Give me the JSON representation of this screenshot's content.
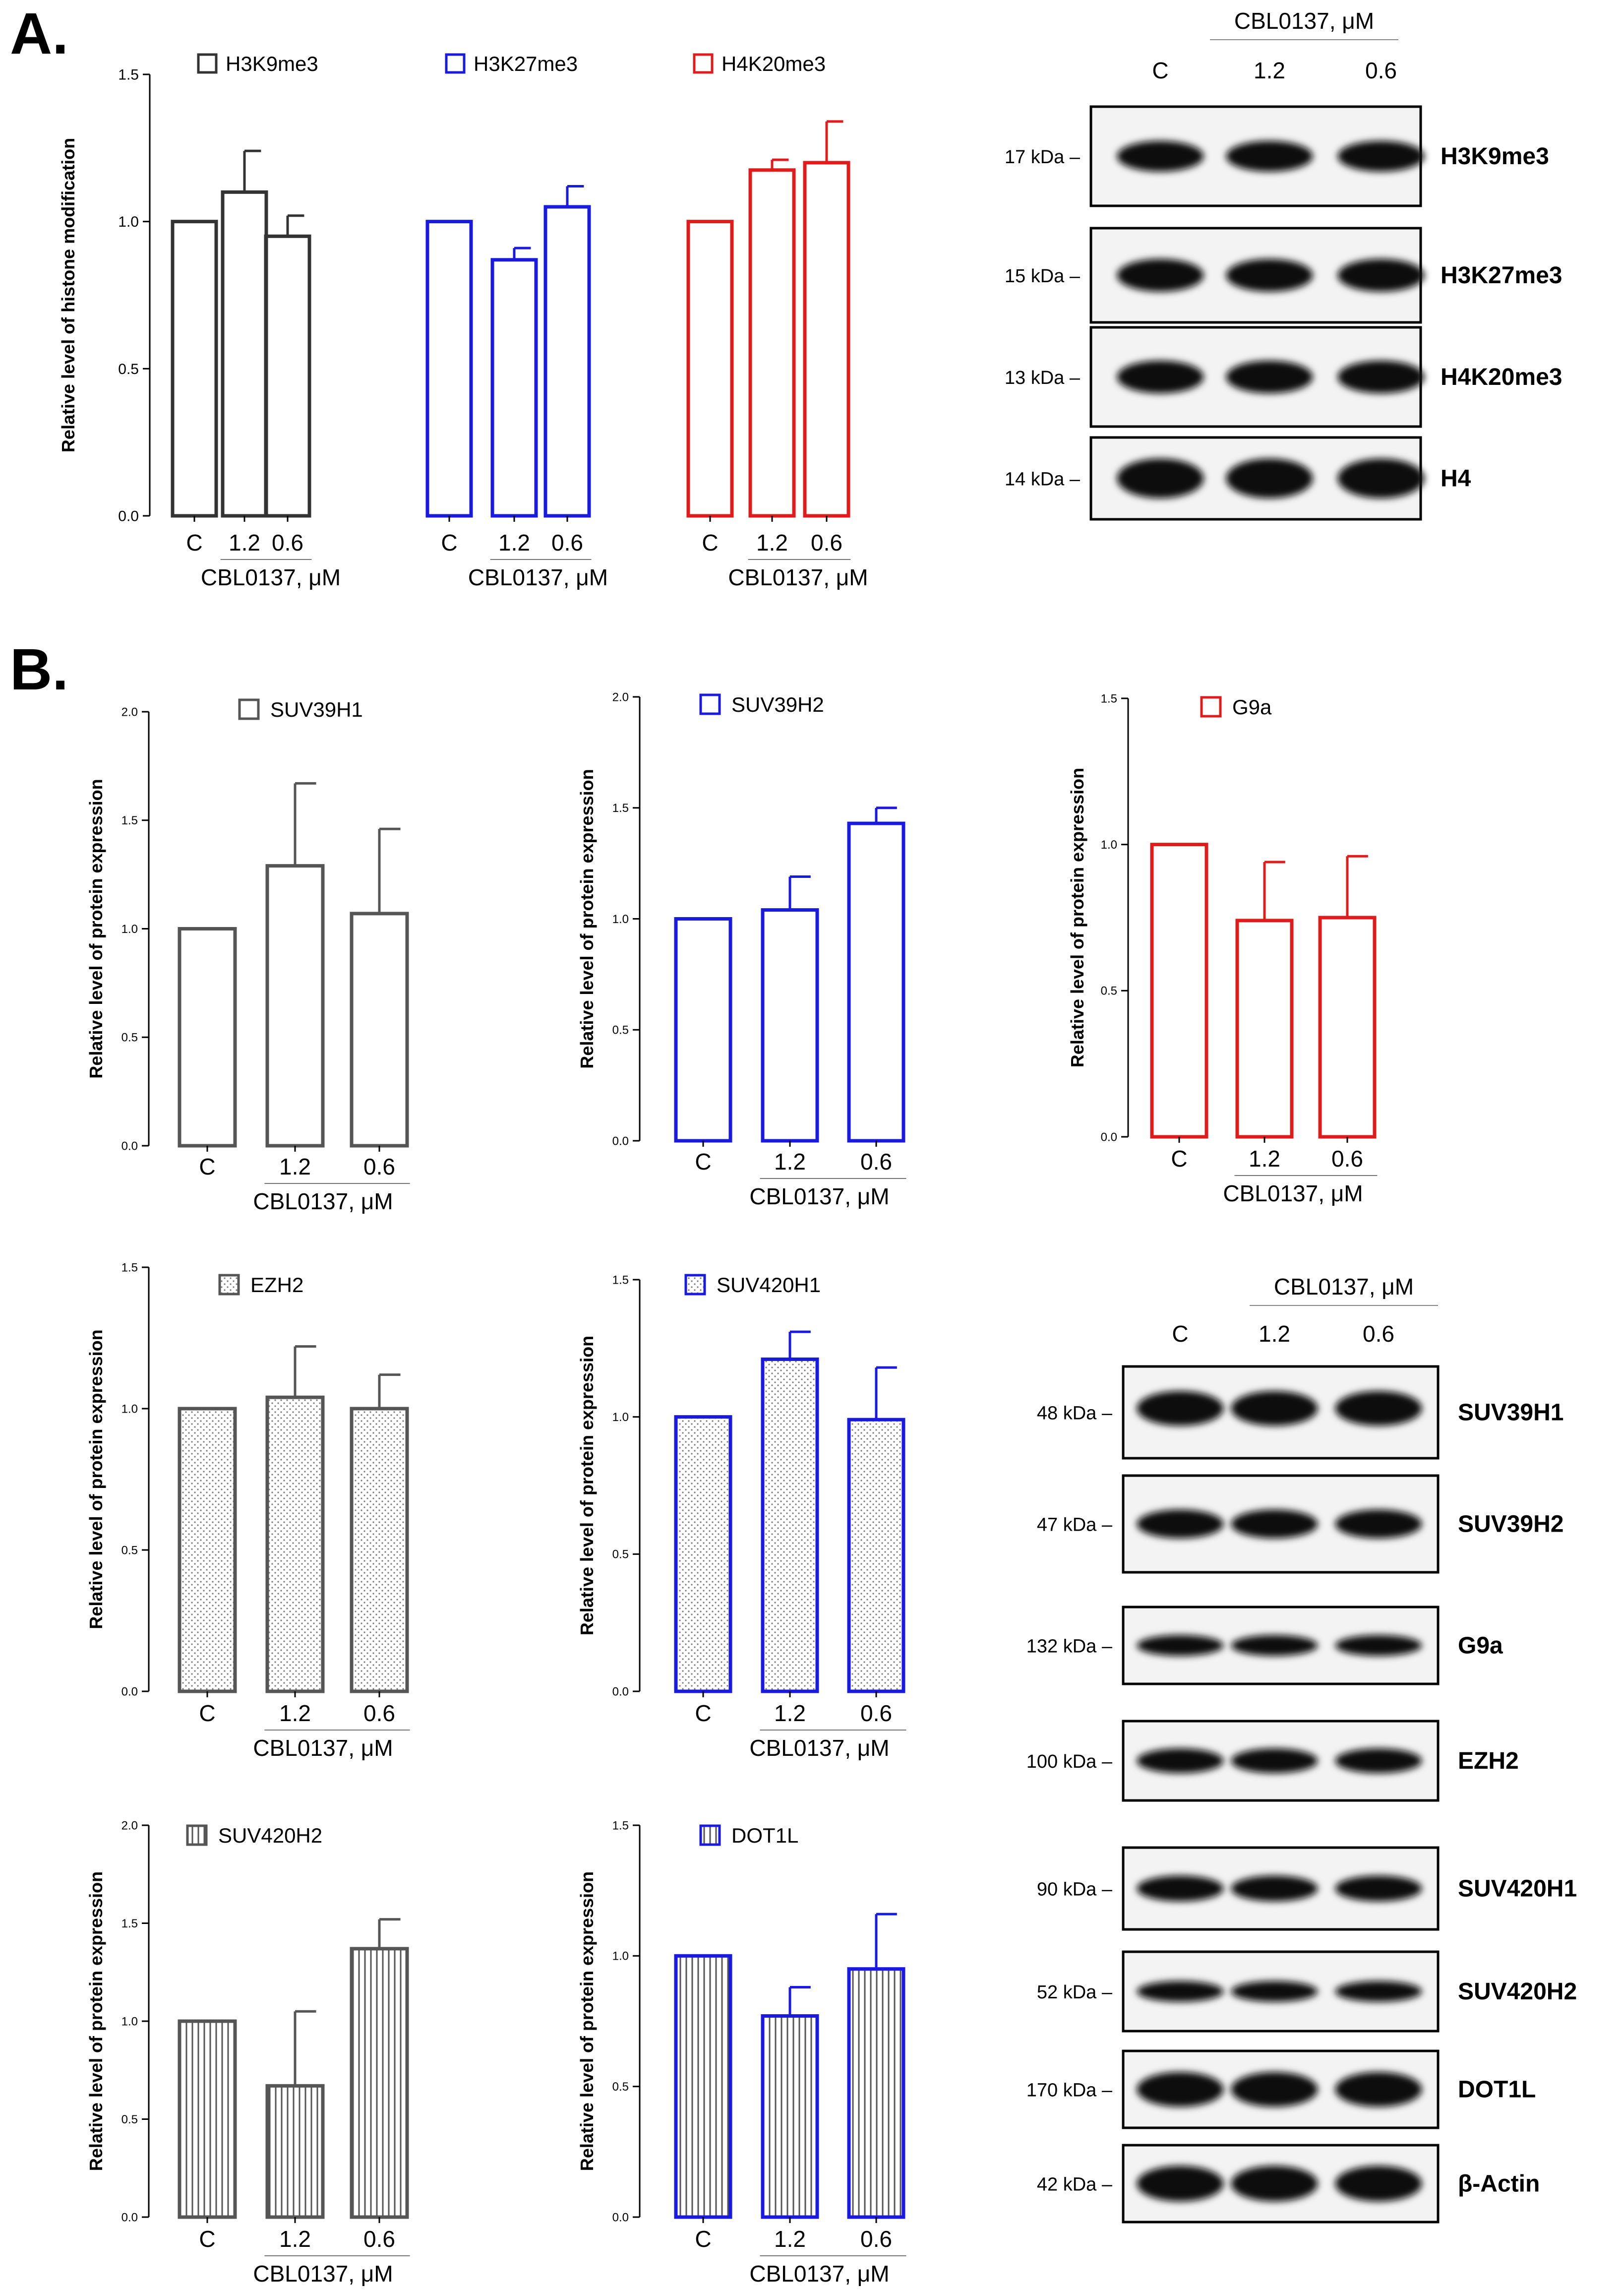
{
  "panels": {
    "a": "A.",
    "b": "B."
  },
  "chart_data": [
    {
      "id": "A-chart",
      "type": "bar",
      "ylabel": "Relative level of histone modification",
      "ylim": [
        0,
        1.5
      ],
      "yticks": [
        "0.0",
        "0.5",
        "1.0",
        "1.5"
      ],
      "categories": [
        "C",
        "1.2",
        "0.6"
      ],
      "group_label": "CBL0137, μM",
      "series": [
        {
          "name": "H3K9me3",
          "color": "#333333",
          "values": [
            1.0,
            1.1,
            0.95
          ],
          "errors": [
            0,
            0.14,
            0.07
          ]
        },
        {
          "name": "H3K27me3",
          "color": "#1a1adf",
          "values": [
            1.0,
            0.87,
            1.05
          ],
          "errors": [
            0,
            0.04,
            0.07
          ]
        },
        {
          "name": "H4K20me3",
          "color": "#e01b1b",
          "values": [
            1.0,
            1.175,
            1.2
          ],
          "errors": [
            0,
            0.035,
            0.14
          ]
        }
      ]
    },
    {
      "id": "SUV39H1",
      "type": "bar",
      "title": "SUV39H1",
      "color": "#555555",
      "pattern": "none",
      "ylabel": "Relative level of protein expression",
      "ylim": [
        0,
        2.0
      ],
      "yticks": [
        "0.0",
        "0.5",
        "1.0",
        "1.5",
        "2.0"
      ],
      "categories": [
        "C",
        "1.2",
        "0.6"
      ],
      "group_label": "CBL0137, μM",
      "values": [
        1.0,
        1.29,
        1.07
      ],
      "errors": [
        0,
        0.38,
        0.39
      ]
    },
    {
      "id": "SUV39H2",
      "type": "bar",
      "title": "SUV39H2",
      "color": "#1a1adf",
      "pattern": "none",
      "ylabel": "Relative level of protein expression",
      "ylim": [
        0,
        2.0
      ],
      "yticks": [
        "0.0",
        "0.5",
        "1.0",
        "1.5",
        "2.0"
      ],
      "categories": [
        "C",
        "1.2",
        "0.6"
      ],
      "group_label": "CBL0137, μM",
      "values": [
        1.0,
        1.04,
        1.43
      ],
      "errors": [
        0,
        0.15,
        0.07
      ]
    },
    {
      "id": "G9a",
      "type": "bar",
      "title": "G9a",
      "color": "#e01b1b",
      "pattern": "none",
      "ylabel": "Relative level of protein expression",
      "ylim": [
        0,
        1.5
      ],
      "yticks": [
        "0.0",
        "0.5",
        "1.0",
        "1.5"
      ],
      "categories": [
        "C",
        "1.2",
        "0.6"
      ],
      "group_label": "CBL0137, μM",
      "values": [
        1.0,
        0.74,
        0.75
      ],
      "errors": [
        0,
        0.2,
        0.21
      ]
    },
    {
      "id": "EZH2",
      "type": "bar",
      "title": "EZH2",
      "color": "#555555",
      "pattern": "dots",
      "ylabel": "Relative level of protein expression",
      "ylim": [
        0,
        1.5
      ],
      "yticks": [
        "0.0",
        "0.5",
        "1.0",
        "1.5"
      ],
      "categories": [
        "C",
        "1.2",
        "0.6"
      ],
      "group_label": "CBL0137, μM",
      "values": [
        1.0,
        1.04,
        1.0
      ],
      "errors": [
        0,
        0.18,
        0.12
      ]
    },
    {
      "id": "SUV420H1",
      "type": "bar",
      "title": "SUV420H1",
      "color": "#1a1adf",
      "pattern": "dots",
      "ylabel": "Relative level of protein expression",
      "ylim": [
        0,
        1.5
      ],
      "yticks": [
        "0.0",
        "0.5",
        "1.0",
        "1.5"
      ],
      "categories": [
        "C",
        "1.2",
        "0.6"
      ],
      "group_label": "CBL0137, μM",
      "values": [
        1.0,
        1.21,
        0.99
      ],
      "errors": [
        0,
        0.1,
        0.19
      ]
    },
    {
      "id": "SUV420H2",
      "type": "bar",
      "title": "SUV420H2",
      "color": "#555555",
      "pattern": "vlines",
      "ylabel": "Relative level of protein expression",
      "ylim": [
        0,
        2.0
      ],
      "yticks": [
        "0.0",
        "0.5",
        "1.0",
        "1.5",
        "2.0"
      ],
      "categories": [
        "C",
        "1.2",
        "0.6"
      ],
      "group_label": "CBL0137, μM",
      "values": [
        1.0,
        0.67,
        1.37
      ],
      "errors": [
        0,
        0.38,
        0.15
      ]
    },
    {
      "id": "DOT1L",
      "type": "bar",
      "title": "DOT1L",
      "color": "#1a1adf",
      "pattern": "vlines",
      "ylabel": "Relative level of protein expression",
      "ylim": [
        0,
        1.5
      ],
      "yticks": [
        "0.0",
        "0.5",
        "1.0",
        "1.5"
      ],
      "categories": [
        "C",
        "1.2",
        "0.6"
      ],
      "group_label": "CBL0137, μM",
      "values": [
        1.0,
        0.77,
        0.95
      ],
      "errors": [
        0,
        0.11,
        0.21
      ]
    }
  ],
  "blots": {
    "A": {
      "treatment": "CBL0137, μM",
      "lanes": [
        "C",
        "1.2",
        "0.6"
      ],
      "rows": [
        {
          "kda": "17 kDa –",
          "protein": "H3K9me3"
        },
        {
          "kda": "15 kDa –",
          "protein": "H3K27me3"
        },
        {
          "kda": "13 kDa –",
          "protein": "H4K20me3"
        },
        {
          "kda": "14 kDa –",
          "protein": "H4"
        }
      ]
    },
    "B": {
      "treatment": "CBL0137, μM",
      "lanes": [
        "C",
        "1.2",
        "0.6"
      ],
      "rows": [
        {
          "kda": "48 kDa –",
          "protein": "SUV39H1"
        },
        {
          "kda": "47 kDa –",
          "protein": "SUV39H2"
        },
        {
          "kda": "132 kDa –",
          "protein": "G9a"
        },
        {
          "kda": "100 kDa –",
          "protein": "EZH2"
        },
        {
          "kda": "90 kDa –",
          "protein": "SUV420H1"
        },
        {
          "kda": "52 kDa –",
          "protein": "SUV420H2"
        },
        {
          "kda": "170 kDa –",
          "protein": "DOT1L"
        },
        {
          "kda": "42 kDa –",
          "protein": "β-Actin"
        }
      ]
    }
  }
}
